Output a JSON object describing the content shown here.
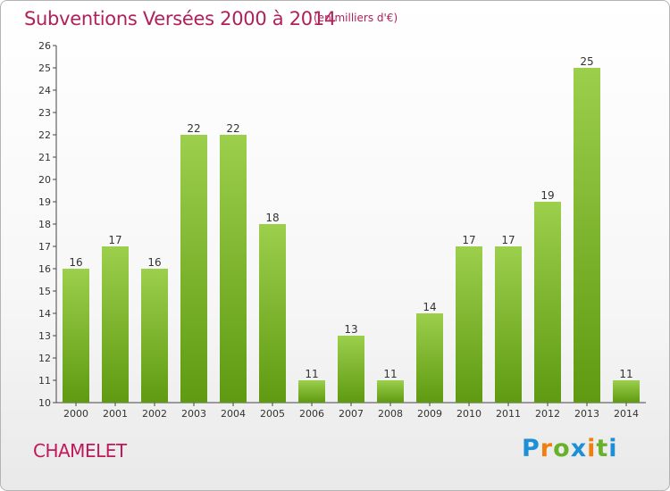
{
  "chart_data": {
    "type": "bar",
    "title": "Subventions Versées 2000 à 2014",
    "subtitle": "(en milliers d'€)",
    "categories": [
      "2000",
      "2001",
      "2002",
      "2003",
      "2004",
      "2005",
      "2006",
      "2007",
      "2008",
      "2009",
      "2010",
      "2011",
      "2012",
      "2013",
      "2014"
    ],
    "values": [
      16,
      17,
      16,
      22,
      22,
      18,
      11,
      13,
      11,
      14,
      17,
      17,
      19,
      25,
      11
    ],
    "ylim": [
      10,
      26
    ],
    "yticks": [
      10,
      11,
      12,
      13,
      14,
      15,
      16,
      17,
      18,
      19,
      20,
      21,
      22,
      23,
      24,
      25,
      26
    ],
    "grid": false,
    "legend": "none",
    "colors": {
      "bar_top": "#9ccf4c",
      "bar_bottom": "#5f9a12",
      "title": "#b0205a"
    }
  },
  "footer": {
    "commune": "CHAMELET",
    "logo": {
      "letters": [
        "P",
        "r",
        "o",
        "x",
        "i",
        "t",
        "i"
      ],
      "colors": [
        "#1d8fd6",
        "#f07f10",
        "#68b22b",
        "#1d8fd6",
        "#f07f10",
        "#68b22b",
        "#1d8fd6"
      ]
    }
  }
}
